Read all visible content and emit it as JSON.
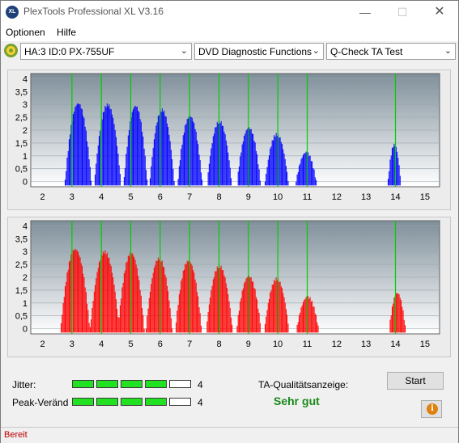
{
  "window": {
    "title": "PlexTools Professional XL V3.16",
    "icon_text": "XL"
  },
  "menu": {
    "items": [
      "Optionen",
      "Hilfe"
    ]
  },
  "toolbar": {
    "drive": "HA:3 ID:0  PX-755UF",
    "function": "DVD Diagnostic Functions",
    "test": "Q-Check TA Test"
  },
  "chart_data": [
    {
      "type": "bar",
      "title": "",
      "series": [
        {
          "values": []
        }
      ],
      "color": "#0000ff",
      "xlim": [
        1.6,
        15.5
      ],
      "ylim": [
        -0.2,
        4.2
      ],
      "x_ticks": [
        2,
        3,
        4,
        5,
        6,
        7,
        8,
        9,
        10,
        11,
        12,
        13,
        14,
        15
      ],
      "y_ticks": [
        "0",
        "0,5",
        "1",
        "1,5",
        "2",
        "2,5",
        "3",
        "3,5",
        "4"
      ],
      "y_tick_values": [
        0,
        0.5,
        1,
        1.5,
        2,
        2.5,
        3,
        3.5,
        4
      ],
      "markers": [
        3,
        4,
        5,
        6,
        7,
        8,
        9,
        10,
        11,
        14
      ],
      "marker_color": "#00cc00",
      "peaks": [
        {
          "x": 3.2,
          "h": 3.1,
          "w": 0.45
        },
        {
          "x": 4.2,
          "h": 3.05,
          "w": 0.45
        },
        {
          "x": 5.15,
          "h": 3.0,
          "w": 0.4
        },
        {
          "x": 6.05,
          "h": 2.85,
          "w": 0.42
        },
        {
          "x": 7.0,
          "h": 2.6,
          "w": 0.42
        },
        {
          "x": 8.0,
          "h": 2.4,
          "w": 0.42
        },
        {
          "x": 9.0,
          "h": 2.15,
          "w": 0.4
        },
        {
          "x": 9.95,
          "h": 1.9,
          "w": 0.4
        },
        {
          "x": 10.95,
          "h": 1.2,
          "w": 0.35
        },
        {
          "x": 13.95,
          "h": 1.5,
          "w": 0.22
        }
      ],
      "grid": true
    },
    {
      "type": "bar",
      "title": "",
      "series": [
        {
          "values": []
        }
      ],
      "color": "#ff0000",
      "xlim": [
        1.6,
        15.5
      ],
      "ylim": [
        -0.2,
        4.2
      ],
      "x_ticks": [
        2,
        3,
        4,
        5,
        6,
        7,
        8,
        9,
        10,
        11,
        12,
        13,
        14,
        15
      ],
      "y_ticks": [
        "0",
        "0,5",
        "1",
        "1,5",
        "2",
        "2,5",
        "3",
        "3,5",
        "4"
      ],
      "y_tick_values": [
        0,
        0.5,
        1,
        1.5,
        2,
        2.5,
        3,
        3.5,
        4
      ],
      "markers": [
        3,
        4,
        5,
        6,
        7,
        8,
        9,
        10,
        11,
        14
      ],
      "marker_color": "#00cc00",
      "peaks": [
        {
          "x": 3.1,
          "h": 3.15,
          "w": 0.5
        },
        {
          "x": 4.1,
          "h": 3.05,
          "w": 0.5
        },
        {
          "x": 5.0,
          "h": 3.0,
          "w": 0.45
        },
        {
          "x": 5.95,
          "h": 2.8,
          "w": 0.45
        },
        {
          "x": 6.95,
          "h": 2.7,
          "w": 0.45
        },
        {
          "x": 8.0,
          "h": 2.5,
          "w": 0.45
        },
        {
          "x": 9.0,
          "h": 2.1,
          "w": 0.42
        },
        {
          "x": 9.95,
          "h": 2.0,
          "w": 0.42
        },
        {
          "x": 11.0,
          "h": 1.3,
          "w": 0.38
        },
        {
          "x": 14.05,
          "h": 1.45,
          "w": 0.28
        }
      ],
      "grid": true
    }
  ],
  "jitter": {
    "label": "Jitter:",
    "value": "4",
    "level": 4,
    "max": 5
  },
  "peak": {
    "label": "Peak-Veränd",
    "value": "4",
    "level": 4,
    "max": 5
  },
  "ta": {
    "label": "TA-Qualitätsanzeige:",
    "value": "Sehr gut"
  },
  "buttons": {
    "start": "Start"
  },
  "status": {
    "text": "Bereit"
  }
}
